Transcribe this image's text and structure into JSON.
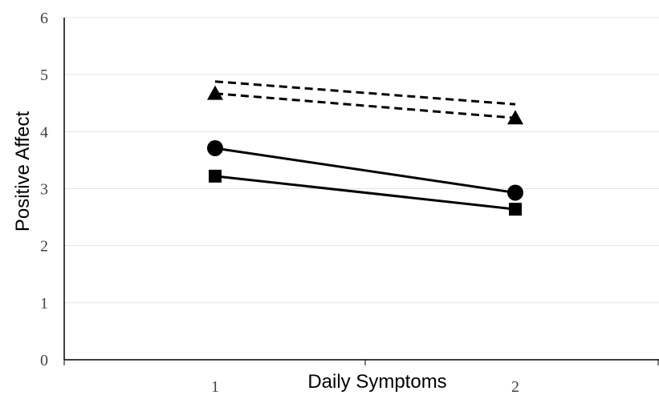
{
  "chart_data": {
    "type": "line",
    "title": "",
    "xlabel": "Daily Symptoms",
    "ylabel": "Positive Affect",
    "categories": [
      "1",
      "2"
    ],
    "ylim": [
      0,
      6
    ],
    "yticks": [
      "0",
      "1",
      "2",
      "3",
      "4",
      "5",
      "6"
    ],
    "grid": "horizontal",
    "legend": "none",
    "series": [
      {
        "values": [
          4.88,
          4.48
        ],
        "line_style": "dashed",
        "marker": "none",
        "color": "#000000"
      },
      {
        "values": [
          4.67,
          4.24
        ],
        "line_style": "dashed",
        "marker": "triangle",
        "color": "#000000"
      },
      {
        "values": [
          3.71,
          2.93
        ],
        "line_style": "solid",
        "marker": "circle",
        "color": "#000000"
      },
      {
        "values": [
          3.22,
          2.64
        ],
        "line_style": "solid",
        "marker": "square",
        "color": "#000000"
      }
    ]
  }
}
